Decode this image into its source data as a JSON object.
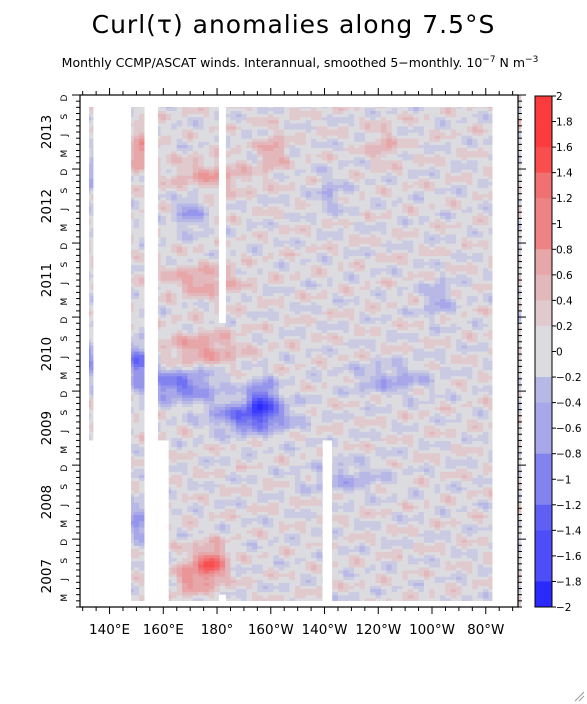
{
  "title": "Curl(τ) anomalies along 7.5°S",
  "subtitle": {
    "text": "Monthly CCMP/ASCAT winds. Interannual, smoothed 5−monthly. 10",
    "exponent": "−7",
    "unit": " N m",
    "unit_exponent": "−3"
  },
  "chart_data": {
    "type": "heatmap",
    "title": "Curl(τ) anomalies along 7.5°S",
    "x_axis": {
      "range": [
        129,
        292
      ],
      "ticks": [
        {
          "lon": 140,
          "label": "140°E"
        },
        {
          "lon": 160,
          "label": "160°E"
        },
        {
          "lon": 180,
          "label": "180°"
        },
        {
          "lon": 200,
          "label": "160°W"
        },
        {
          "lon": 220,
          "label": "140°W"
        },
        {
          "lon": 240,
          "label": "120°W"
        },
        {
          "lon": 260,
          "label": "100°W"
        },
        {
          "lon": 280,
          "label": "80°W"
        }
      ]
    },
    "y_axis": {
      "range": [
        "2007-02",
        "2013-12"
      ],
      "year_labels": [
        {
          "year": "2007",
          "center": "2007-07"
        },
        {
          "year": "2008",
          "center": "2008-07"
        },
        {
          "year": "2009",
          "center": "2009-07"
        },
        {
          "year": "2010",
          "center": "2010-07"
        },
        {
          "year": "2011",
          "center": "2011-07"
        },
        {
          "year": "2012",
          "center": "2012-07"
        },
        {
          "year": "2013",
          "center": "2013-07"
        }
      ],
      "month_letters": [
        "M",
        "J",
        "S",
        "D"
      ]
    },
    "colorbar": {
      "min": -2,
      "max": 2,
      "step": 0.2,
      "labels": [
        "2",
        "1.8",
        "1.6",
        "1.4",
        "1.2",
        "1",
        "0.8",
        "0.6",
        "0.4",
        "0.2",
        "0",
        "−0.2",
        "−0.4",
        "−0.6",
        "−0.8",
        "−1",
        "−1.2",
        "−1.4",
        "−1.6",
        "−1.8",
        "−2"
      ],
      "colors": {
        "positive": "#ff2a2a",
        "neutral": "#dcdce0",
        "negative": "#2a2aff"
      }
    },
    "features": [
      {
        "type": "band",
        "lon": 193,
        "date": "2009-09",
        "sign": -1,
        "amp": 1.3
      },
      {
        "type": "band",
        "lon": 166,
        "date": "2010-02",
        "sign": -1,
        "amp": 1.1
      },
      {
        "type": "blob",
        "lon": 197,
        "date": "2009-12",
        "sign": -1,
        "amp": 1.2
      },
      {
        "type": "blob",
        "lon": 178,
        "date": "2007-09",
        "sign": 1,
        "amp": 1.4
      },
      {
        "type": "blob",
        "lon": 170,
        "date": "2007-07",
        "sign": 1,
        "amp": 0.8
      },
      {
        "type": "band",
        "lon": 175,
        "date": "2010-08",
        "sign": 1,
        "amp": 0.7
      },
      {
        "type": "band",
        "lon": 175,
        "date": "2011-07",
        "sign": 1,
        "amp": 0.6
      },
      {
        "type": "band",
        "lon": 178,
        "date": "2012-12",
        "sign": 1,
        "amp": 0.6
      },
      {
        "type": "blob",
        "lon": 170,
        "date": "2012-06",
        "sign": -1,
        "amp": 0.7
      },
      {
        "type": "blob",
        "lon": 151,
        "date": "2010-06",
        "sign": -1,
        "amp": 1.2
      },
      {
        "type": "blob",
        "lon": 151,
        "date": "2008-04",
        "sign": -1,
        "amp": 0.8
      },
      {
        "type": "blob",
        "lon": 152,
        "date": "2013-04",
        "sign": 1,
        "amp": 0.9
      },
      {
        "type": "blob",
        "lon": 132,
        "date": "2010-06",
        "sign": -1,
        "amp": 0.8
      },
      {
        "type": "blob",
        "lon": 133,
        "date": "2012-12",
        "sign": -1,
        "amp": 0.6
      },
      {
        "type": "band",
        "lon": 245,
        "date": "2010-03",
        "sign": -1,
        "amp": 0.55
      },
      {
        "type": "blob",
        "lon": 262,
        "date": "2011-04",
        "sign": -1,
        "amp": 0.55
      },
      {
        "type": "blob",
        "lon": 222,
        "date": "2012-09",
        "sign": -1,
        "amp": 0.45
      },
      {
        "type": "blob",
        "lon": 242,
        "date": "2013-05",
        "sign": 1,
        "amp": 0.45
      },
      {
        "type": "band",
        "lon": 228,
        "date": "2008-11",
        "sign": -1,
        "amp": 0.45
      },
      {
        "type": "blob",
        "lon": 201,
        "date": "2013-04",
        "sign": 1,
        "amp": 0.6
      }
    ],
    "missing_columns": [
      {
        "lon_range": [
          131.5,
          134
        ],
        "date_range": [
          "2007-02",
          "2009-04"
        ]
      },
      {
        "lon_range": [
          134,
          148
        ],
        "date_range": [
          "2007-02",
          "2013-12"
        ]
      },
      {
        "lon_range": [
          153,
          158
        ],
        "date_range": [
          "2007-02",
          "2013-12"
        ]
      },
      {
        "lon_range": [
          158,
          162
        ],
        "date_range": [
          "2007-02",
          "2009-04"
        ]
      },
      {
        "lon_range": [
          180.7,
          183.3
        ],
        "date_range": [
          "2010-12",
          "2013-12"
        ]
      },
      {
        "lon_range": [
          180.7,
          183.3
        ],
        "date_range": [
          "2007-02",
          "2007-03"
        ]
      },
      {
        "lon_range": [
          219.3,
          222.8
        ],
        "date_range": [
          "2007-02",
          "2009-04"
        ]
      },
      {
        "lon_range": [
          282.5,
          292
        ],
        "date_range": [
          "2007-02",
          "2013-12"
        ]
      }
    ]
  }
}
